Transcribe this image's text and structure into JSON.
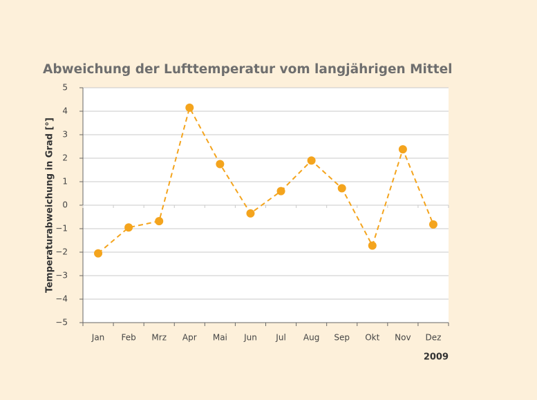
{
  "chart_data": {
    "type": "line",
    "title": "Abweichung der Lufttemperatur vom langjährigen Mittel",
    "y_label": "Temperaturabweichung in Grad [°]",
    "x_label": "2009",
    "categories": [
      "Jan",
      "Feb",
      "Mrz",
      "Apr",
      "Mai",
      "Jun",
      "Jul",
      "Aug",
      "Sep",
      "Okt",
      "Nov",
      "Dez"
    ],
    "series": [
      {
        "name": "Abweichung",
        "color": "#f4a41d",
        "values": [
          -2.05,
          -0.95,
          -0.68,
          4.15,
          1.75,
          -0.35,
          0.6,
          1.9,
          0.72,
          -1.72,
          2.38,
          -0.82
        ]
      }
    ],
    "ylim": [
      -5,
      5
    ],
    "yticks": [
      {
        "value": -5,
        "label": "−5"
      },
      {
        "value": -4,
        "label": "−4"
      },
      {
        "value": -3,
        "label": "−3"
      },
      {
        "value": -2,
        "label": "−2"
      },
      {
        "value": -1,
        "label": "−1"
      },
      0,
      1,
      2,
      3,
      4,
      5
    ],
    "grid": true,
    "dashed": true
  }
}
